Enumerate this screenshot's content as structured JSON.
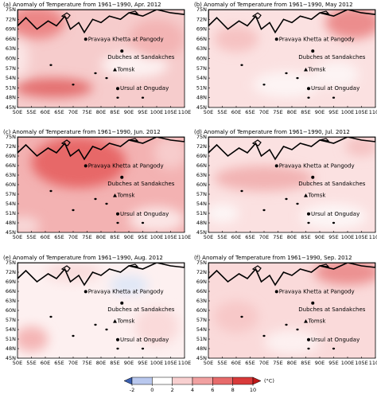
{
  "panels": [
    {
      "title": "(a) Anomaly of Temperature from 1961−1990, Apr. 2012"
    },
    {
      "title": "(b) Anomaly of Temperature from 1961−1990, May 2012"
    },
    {
      "title": "(c) Anomaly of Temperature from 1961−1990, Jun. 2012"
    },
    {
      "title": "(d) Anomaly of Temperature from 1961−1990, Jul. 2012"
    },
    {
      "title": "(e) Anomaly of Temperature from 1961−1990, Aug. 2012"
    },
    {
      "title": "(f) Anomaly of Temperature from 1961−1990, Sep. 2012"
    }
  ],
  "lon_labels": [
    "50E",
    "55E",
    "60E",
    "65E",
    "70E",
    "75E",
    "80E",
    "85E",
    "90E",
    "95E",
    "100E",
    "105E",
    "110E"
  ],
  "lat_labels": [
    "45N",
    "48N",
    "51N",
    "54N",
    "57N",
    "60N",
    "63N",
    "66N",
    "69N",
    "72N",
    "75N"
  ],
  "stations": [
    "Pravaya Khetta at Pangody",
    "Dubches at Sandakches",
    "Tomsk",
    "Ursul at Onguday"
  ],
  "colorbar": {
    "ticks": [
      -2,
      0,
      2,
      4,
      6,
      8,
      10
    ],
    "label": "(°C)",
    "colors": [
      "#3b5fb0",
      "#b9c8ee",
      "#ffffff",
      "#f8d0d0",
      "#f1a1a1",
      "#e76b6b",
      "#d93a3a",
      "#c01818"
    ]
  }
}
